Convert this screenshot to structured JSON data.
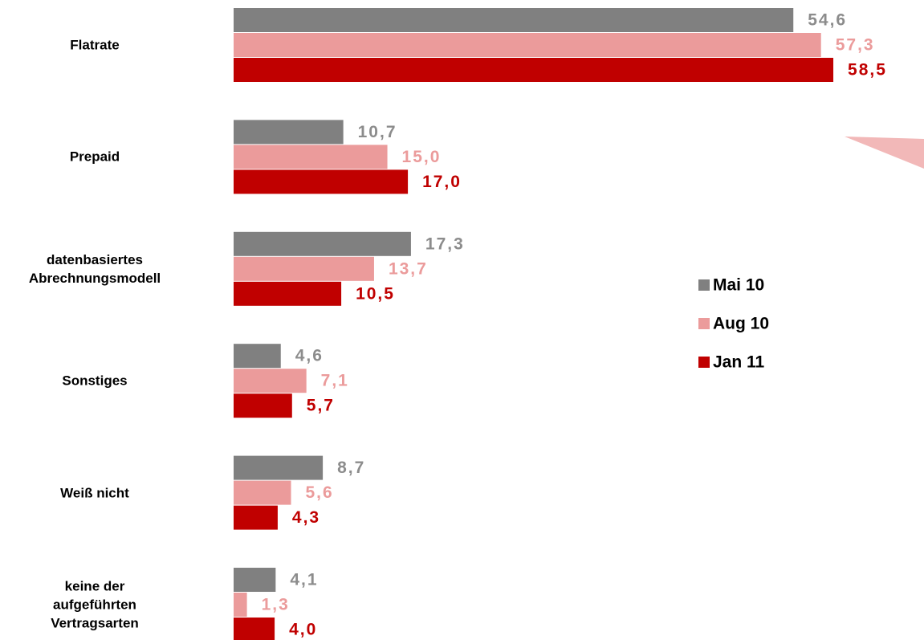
{
  "chart_data": {
    "type": "bar",
    "orientation": "horizontal",
    "categories": [
      "Flatrate",
      "Prepaid",
      "datenbasiertes\nAbrechnungsmodell",
      "Sonstiges",
      "Weiß nicht",
      "keine der\naufgeführten\nVertragsarten"
    ],
    "series": [
      {
        "name": "Mai 10",
        "color": "#808080",
        "label_color": "#8c8c8c",
        "values": [
          54.6,
          10.7,
          17.3,
          4.6,
          8.7,
          4.1
        ],
        "value_labels": [
          "54,6",
          "10,7",
          "17,3",
          "4,6",
          "8,7",
          "4,1"
        ]
      },
      {
        "name": "Aug 10",
        "color": "#eb9b9b",
        "label_color": "#eb9b9b",
        "values": [
          57.3,
          15.0,
          13.7,
          7.1,
          5.6,
          1.3
        ],
        "value_labels": [
          "57,3",
          "15,0",
          "13,7",
          "7,1",
          "5,6",
          "1,3"
        ]
      },
      {
        "name": "Jan 11",
        "color": "#c00000",
        "label_color": "#c00000",
        "values": [
          58.5,
          17.0,
          10.5,
          5.7,
          4.3,
          4.0
        ],
        "value_labels": [
          "58,5",
          "17,0",
          "10,5",
          "5,7",
          "4,3",
          "4,0"
        ]
      }
    ],
    "legend": "right"
  }
}
